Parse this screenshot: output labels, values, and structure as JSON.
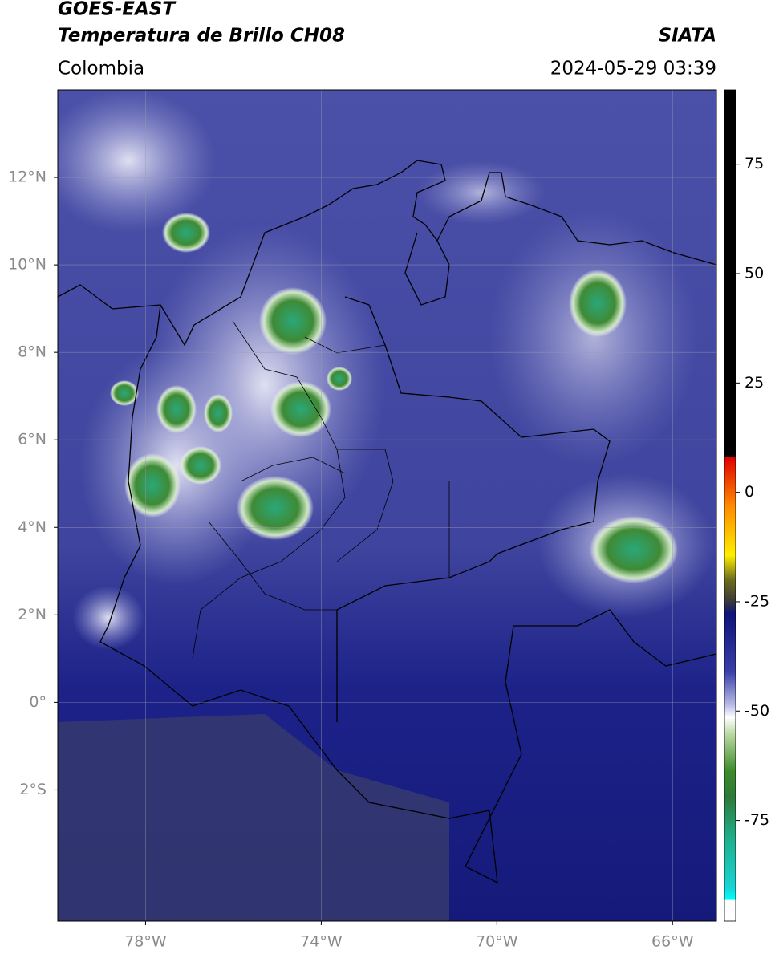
{
  "header": {
    "title": "GOES-EAST",
    "subtitle": "Temperatura de Brillo CH08",
    "source": "SIATA",
    "region": "Colombia",
    "datetime": "2024-05-29 03:39"
  },
  "map": {
    "xlim": [
      -80,
      -65
    ],
    "ylim": [
      -5,
      14
    ],
    "xticks": [
      {
        "value": -78,
        "label": "78°W"
      },
      {
        "value": -74,
        "label": "74°W"
      },
      {
        "value": -70,
        "label": "70°W"
      },
      {
        "value": -66,
        "label": "66°W"
      }
    ],
    "yticks": [
      {
        "value": 12,
        "label": "12°N"
      },
      {
        "value": 10,
        "label": "10°N"
      },
      {
        "value": 8,
        "label": "8°N"
      },
      {
        "value": 6,
        "label": "6°N"
      },
      {
        "value": 4,
        "label": "4°N"
      },
      {
        "value": 2,
        "label": "2°N"
      },
      {
        "value": 0,
        "label": "0°"
      },
      {
        "value": -2,
        "label": "2°S"
      }
    ],
    "grid": true
  },
  "colorbar": {
    "lim": [
      -98,
      92
    ],
    "ticks": [
      75,
      50,
      25,
      0,
      -25,
      -50,
      -75
    ]
  }
}
